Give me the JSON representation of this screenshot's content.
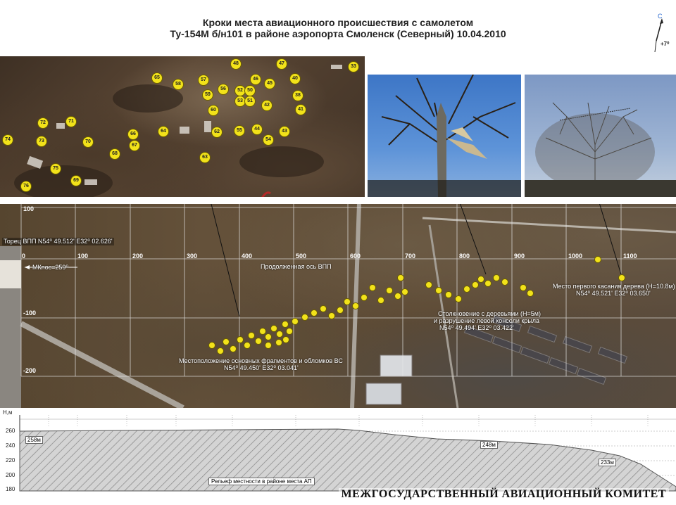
{
  "title": {
    "line1": "Кроки места авиационного происшествия с самолетом",
    "line2": "Ту-154М б/н101 в районе аэропорта Смоленск (Северный) 10.04.2010"
  },
  "compass": {
    "north_label": "С",
    "declination": "+7⁰"
  },
  "wreck_markers": [
    "48",
    "47",
    "33",
    "65",
    "58",
    "57",
    "46",
    "45",
    "40",
    "56",
    "52",
    "50",
    "38",
    "59",
    "53",
    "51",
    "42",
    "60",
    "41",
    "72",
    "71",
    "64",
    "62",
    "55",
    "44",
    "43",
    "66",
    "54",
    "74",
    "73",
    "70",
    "67",
    "68",
    "63",
    "75",
    "69",
    "76"
  ],
  "aerial": {
    "grid_x_labels": [
      "0",
      "100",
      "200",
      "300",
      "400",
      "500",
      "600",
      "700",
      "800",
      "900",
      "1000",
      "1100"
    ],
    "grid_y_labels": [
      "100",
      "-100",
      "-200"
    ],
    "runway_threshold": "Торец ВПП N54⁰ 49.512'   E32⁰ 02.626'",
    "runway_heading": "МКпос=259⁰",
    "extended_axis": "Продолженная ось ВПП",
    "first_contact": "Место первого касания дерева (H=10.8м)",
    "first_contact_coords": "N54⁰ 49.521'   E32⁰ 03.650'",
    "collision_line1": "Столкновение с деревьями (H=5м)",
    "collision_line2": "и разрушение левой консоли крыла",
    "collision_coords": "N54⁰ 49.494'   E32⁰ 03.422'",
    "main_fragments": "Местоположение основных фрагментов и обломков ВС",
    "main_fragments_coords": "N54⁰ 49.450'   E32⁰ 03.041'"
  },
  "profile": {
    "y_axis_title": "Н,м",
    "y_ticks": [
      "260",
      "240",
      "220",
      "200",
      "180"
    ],
    "labels": [
      "258м",
      "248м",
      "233м"
    ],
    "caption": "Рельеф местности в районе места АП"
  },
  "watermark": "МЕЖГОСУДАРСТВЕННЫЙ АВИАЦИОННЫЙ КОМИТЕТ",
  "colors": {
    "marker": "#f2e21a",
    "profile_fill": "#cfcfcf",
    "title": "#222222"
  }
}
